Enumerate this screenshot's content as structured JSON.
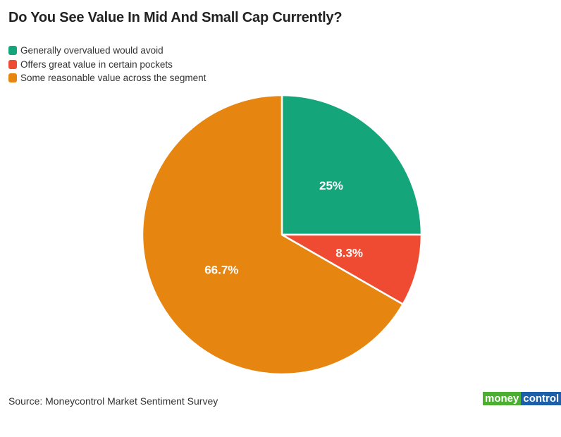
{
  "chart_data": {
    "type": "pie",
    "title": "Do You See Value In Mid And Small Cap Currently?",
    "slices": [
      {
        "label": "Generally overvalued would avoid",
        "value": 25,
        "display": "25%",
        "color": "#14a57a"
      },
      {
        "label": "Offers great value in certain pockets",
        "value": 8.3,
        "display": "8.3%",
        "color": "#ef4b33"
      },
      {
        "label": "Some reasonable value across the segment",
        "value": 66.7,
        "display": "66.7%",
        "color": "#e6850f"
      }
    ],
    "legend_placement": "top-left",
    "start_angle": "top, clockwise"
  },
  "source": "Source: Moneycontrol Market Sentiment Survey",
  "logo": {
    "part1": "money",
    "part2": "control",
    "color1": "#4caf32",
    "color2": "#1d5fa8"
  }
}
